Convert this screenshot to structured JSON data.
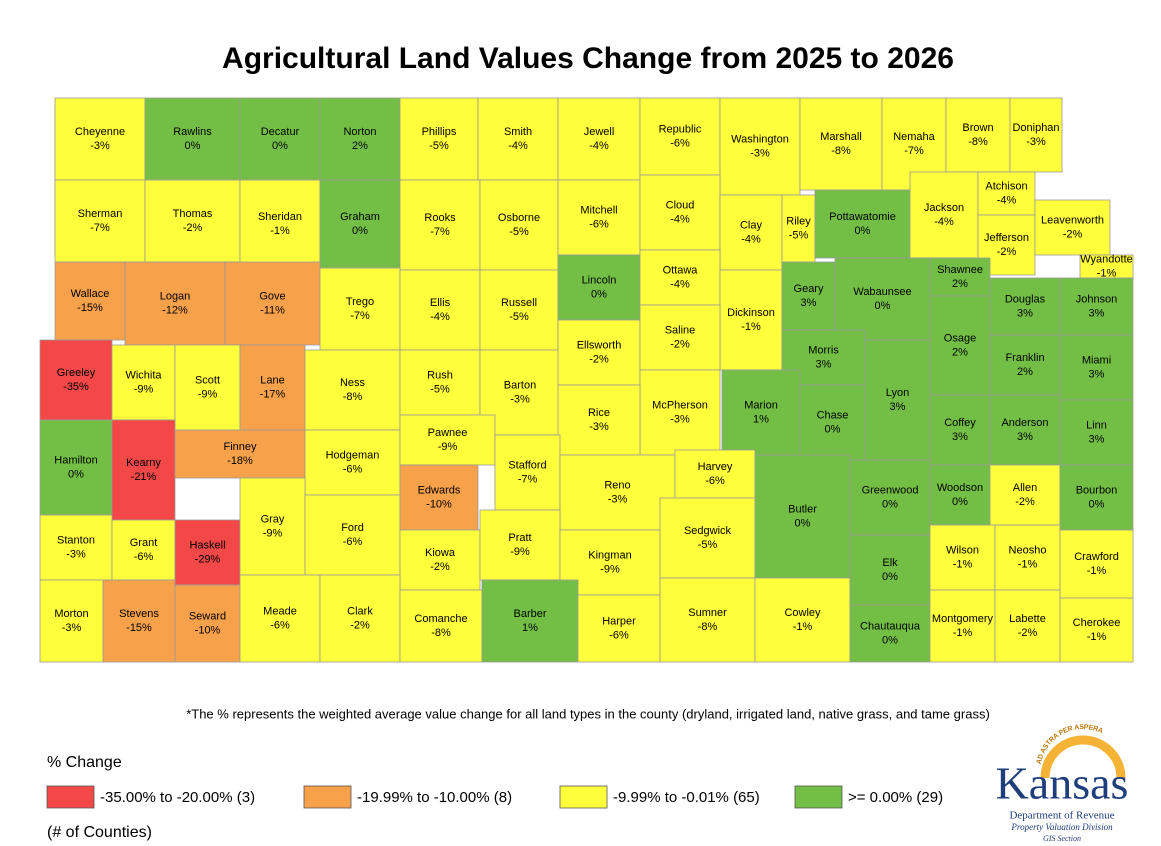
{
  "title": "Agricultural Land Values Change from 2025 to 2026",
  "footnote": "*The % represents the weighted average value change for all land types in the county (dryland, irrigated land, native grass, and tame grass)",
  "legend": {
    "title": "% Change",
    "note": "(# of Counties)",
    "items": [
      {
        "label": "-35.00% to -20.00% (3)",
        "min": -35,
        "color": "#f44848"
      },
      {
        "label": "-19.99% to -10.00% (8)",
        "min": -19.99,
        "color": "#f8a14b"
      },
      {
        "label": "-9.99% to -0.01% (65)",
        "min": -9.99,
        "color": "#ffff3b"
      },
      {
        "label": ">= 0.00% (29)",
        "min": 0,
        "color": "#73bf45"
      }
    ]
  },
  "logo": {
    "motto": "AD ASTRA PER ASPERA",
    "name": "Kansas",
    "department": "Department of Revenue",
    "division": "Property Valuation Division",
    "section": "GIS Section"
  },
  "counties": [
    {
      "name": "Cheyenne",
      "change": -3,
      "label": "-3%"
    },
    {
      "name": "Rawlins",
      "change": 0,
      "label": "0%"
    },
    {
      "name": "Decatur",
      "change": 0,
      "label": "0%"
    },
    {
      "name": "Norton",
      "change": 2,
      "label": "2%"
    },
    {
      "name": "Phillips",
      "change": -5,
      "label": "-5%"
    },
    {
      "name": "Smith",
      "change": -4,
      "label": "-4%"
    },
    {
      "name": "Jewell",
      "change": -4,
      "label": "-4%"
    },
    {
      "name": "Republic",
      "change": -6,
      "label": "-6%"
    },
    {
      "name": "Washington",
      "change": -3,
      "label": "-3%"
    },
    {
      "name": "Marshall",
      "change": -8,
      "label": "-8%"
    },
    {
      "name": "Nemaha",
      "change": -7,
      "label": "-7%"
    },
    {
      "name": "Brown",
      "change": -8,
      "label": "-8%"
    },
    {
      "name": "Doniphan",
      "change": -3,
      "label": "-3%"
    },
    {
      "name": "Sherman",
      "change": -7,
      "label": "-7%"
    },
    {
      "name": "Thomas",
      "change": -2,
      "label": "-2%"
    },
    {
      "name": "Sheridan",
      "change": -1,
      "label": "-1%"
    },
    {
      "name": "Graham",
      "change": 0,
      "label": "0%"
    },
    {
      "name": "Rooks",
      "change": -7,
      "label": "-7%"
    },
    {
      "name": "Osborne",
      "change": -5,
      "label": "-5%"
    },
    {
      "name": "Mitchell",
      "change": -6,
      "label": "-6%"
    },
    {
      "name": "Cloud",
      "change": -4,
      "label": "-4%"
    },
    {
      "name": "Clay",
      "change": -4,
      "label": "-4%"
    },
    {
      "name": "Riley",
      "change": -5,
      "label": "-5%"
    },
    {
      "name": "Pottawatomie",
      "change": 0,
      "label": "0%"
    },
    {
      "name": "Jackson",
      "change": -4,
      "label": "-4%"
    },
    {
      "name": "Atchison",
      "change": -4,
      "label": "-4%"
    },
    {
      "name": "Jefferson",
      "change": -2,
      "label": "-2%"
    },
    {
      "name": "Leavenworth",
      "change": -2,
      "label": "-2%"
    },
    {
      "name": "Wyandotte",
      "change": -1,
      "label": "-1%"
    },
    {
      "name": "Wallace",
      "change": -15,
      "label": "-15%"
    },
    {
      "name": "Logan",
      "change": -12,
      "label": "-12%"
    },
    {
      "name": "Gove",
      "change": -11,
      "label": "-11%"
    },
    {
      "name": "Trego",
      "change": -7,
      "label": "-7%"
    },
    {
      "name": "Ellis",
      "change": -4,
      "label": "-4%"
    },
    {
      "name": "Russell",
      "change": -5,
      "label": "-5%"
    },
    {
      "name": "Lincoln",
      "change": 0,
      "label": "0%"
    },
    {
      "name": "Ottawa",
      "change": -4,
      "label": "-4%"
    },
    {
      "name": "Dickinson",
      "change": -1,
      "label": "-1%"
    },
    {
      "name": "Geary",
      "change": 3,
      "label": "3%"
    },
    {
      "name": "Wabaunsee",
      "change": 0,
      "label": "0%"
    },
    {
      "name": "Shawnee",
      "change": 2,
      "label": "2%"
    },
    {
      "name": "Douglas",
      "change": 3,
      "label": "3%"
    },
    {
      "name": "Johnson",
      "change": 3,
      "label": "3%"
    },
    {
      "name": "Greeley",
      "change": -35,
      "label": "-35%"
    },
    {
      "name": "Wichita",
      "change": -9,
      "label": "-9%"
    },
    {
      "name": "Scott",
      "change": -9,
      "label": "-9%"
    },
    {
      "name": "Lane",
      "change": -17,
      "label": "-17%"
    },
    {
      "name": "Ness",
      "change": -8,
      "label": "-8%"
    },
    {
      "name": "Rush",
      "change": -5,
      "label": "-5%"
    },
    {
      "name": "Barton",
      "change": -3,
      "label": "-3%"
    },
    {
      "name": "Ellsworth",
      "change": -2,
      "label": "-2%"
    },
    {
      "name": "Saline",
      "change": -2,
      "label": "-2%"
    },
    {
      "name": "Morris",
      "change": 3,
      "label": "3%"
    },
    {
      "name": "Osage",
      "change": 2,
      "label": "2%"
    },
    {
      "name": "Franklin",
      "change": 2,
      "label": "2%"
    },
    {
      "name": "Miami",
      "change": 3,
      "label": "3%"
    },
    {
      "name": "Marion",
      "change": 1,
      "label": "1%"
    },
    {
      "name": "Chase",
      "change": 0,
      "label": "0%"
    },
    {
      "name": "Lyon",
      "change": 3,
      "label": "3%"
    },
    {
      "name": "McPherson",
      "change": -3,
      "label": "-3%"
    },
    {
      "name": "Rice",
      "change": -3,
      "label": "-3%"
    },
    {
      "name": "Hamilton",
      "change": 0,
      "label": "0%"
    },
    {
      "name": "Kearny",
      "change": -21,
      "label": "-21%"
    },
    {
      "name": "Finney",
      "change": -18,
      "label": "-18%"
    },
    {
      "name": "Hodgeman",
      "change": -6,
      "label": "-6%"
    },
    {
      "name": "Pawnee",
      "change": -9,
      "label": "-9%"
    },
    {
      "name": "Stafford",
      "change": -7,
      "label": "-7%"
    },
    {
      "name": "Reno",
      "change": -3,
      "label": "-3%"
    },
    {
      "name": "Harvey",
      "change": -6,
      "label": "-6%"
    },
    {
      "name": "Coffey",
      "change": 3,
      "label": "3%"
    },
    {
      "name": "Anderson",
      "change": 3,
      "label": "3%"
    },
    {
      "name": "Linn",
      "change": 3,
      "label": "3%"
    },
    {
      "name": "Stanton",
      "change": -3,
      "label": "-3%"
    },
    {
      "name": "Grant",
      "change": -6,
      "label": "-6%"
    },
    {
      "name": "Haskell",
      "change": -29,
      "label": "-29%"
    },
    {
      "name": "Gray",
      "change": -9,
      "label": "-9%"
    },
    {
      "name": "Ford",
      "change": -6,
      "label": "-6%"
    },
    {
      "name": "Edwards",
      "change": -10,
      "label": "-10%"
    },
    {
      "name": "Kiowa",
      "change": -2,
      "label": "-2%"
    },
    {
      "name": "Pratt",
      "change": -9,
      "label": "-9%"
    },
    {
      "name": "Kingman",
      "change": -9,
      "label": "-9%"
    },
    {
      "name": "Sedgwick",
      "change": -5,
      "label": "-5%"
    },
    {
      "name": "Butler",
      "change": 0,
      "label": "0%"
    },
    {
      "name": "Greenwood",
      "change": 0,
      "label": "0%"
    },
    {
      "name": "Woodson",
      "change": 0,
      "label": "0%"
    },
    {
      "name": "Allen",
      "change": -2,
      "label": "-2%"
    },
    {
      "name": "Bourbon",
      "change": 0,
      "label": "0%"
    },
    {
      "name": "Morton",
      "change": -3,
      "label": "-3%"
    },
    {
      "name": "Stevens",
      "change": -15,
      "label": "-15%"
    },
    {
      "name": "Seward",
      "change": -10,
      "label": "-10%"
    },
    {
      "name": "Meade",
      "change": -6,
      "label": "-6%"
    },
    {
      "name": "Clark",
      "change": -2,
      "label": "-2%"
    },
    {
      "name": "Comanche",
      "change": -8,
      "label": "-8%"
    },
    {
      "name": "Barber",
      "change": 1,
      "label": "1%"
    },
    {
      "name": "Harper",
      "change": -6,
      "label": "-6%"
    },
    {
      "name": "Sumner",
      "change": -8,
      "label": "-8%"
    },
    {
      "name": "Cowley",
      "change": -1,
      "label": "-1%"
    },
    {
      "name": "Elk",
      "change": 0,
      "label": "0%"
    },
    {
      "name": "Chautauqua",
      "change": 0,
      "label": "0%"
    },
    {
      "name": "Wilson",
      "change": -1,
      "label": "-1%"
    },
    {
      "name": "Neosho",
      "change": -1,
      "label": "-1%"
    },
    {
      "name": "Crawford",
      "change": -1,
      "label": "-1%"
    },
    {
      "name": "Montgomery",
      "change": -1,
      "label": "-1%"
    },
    {
      "name": "Labette",
      "change": -2,
      "label": "-2%"
    },
    {
      "name": "Cherokee",
      "change": -1,
      "label": "-1%"
    }
  ]
}
